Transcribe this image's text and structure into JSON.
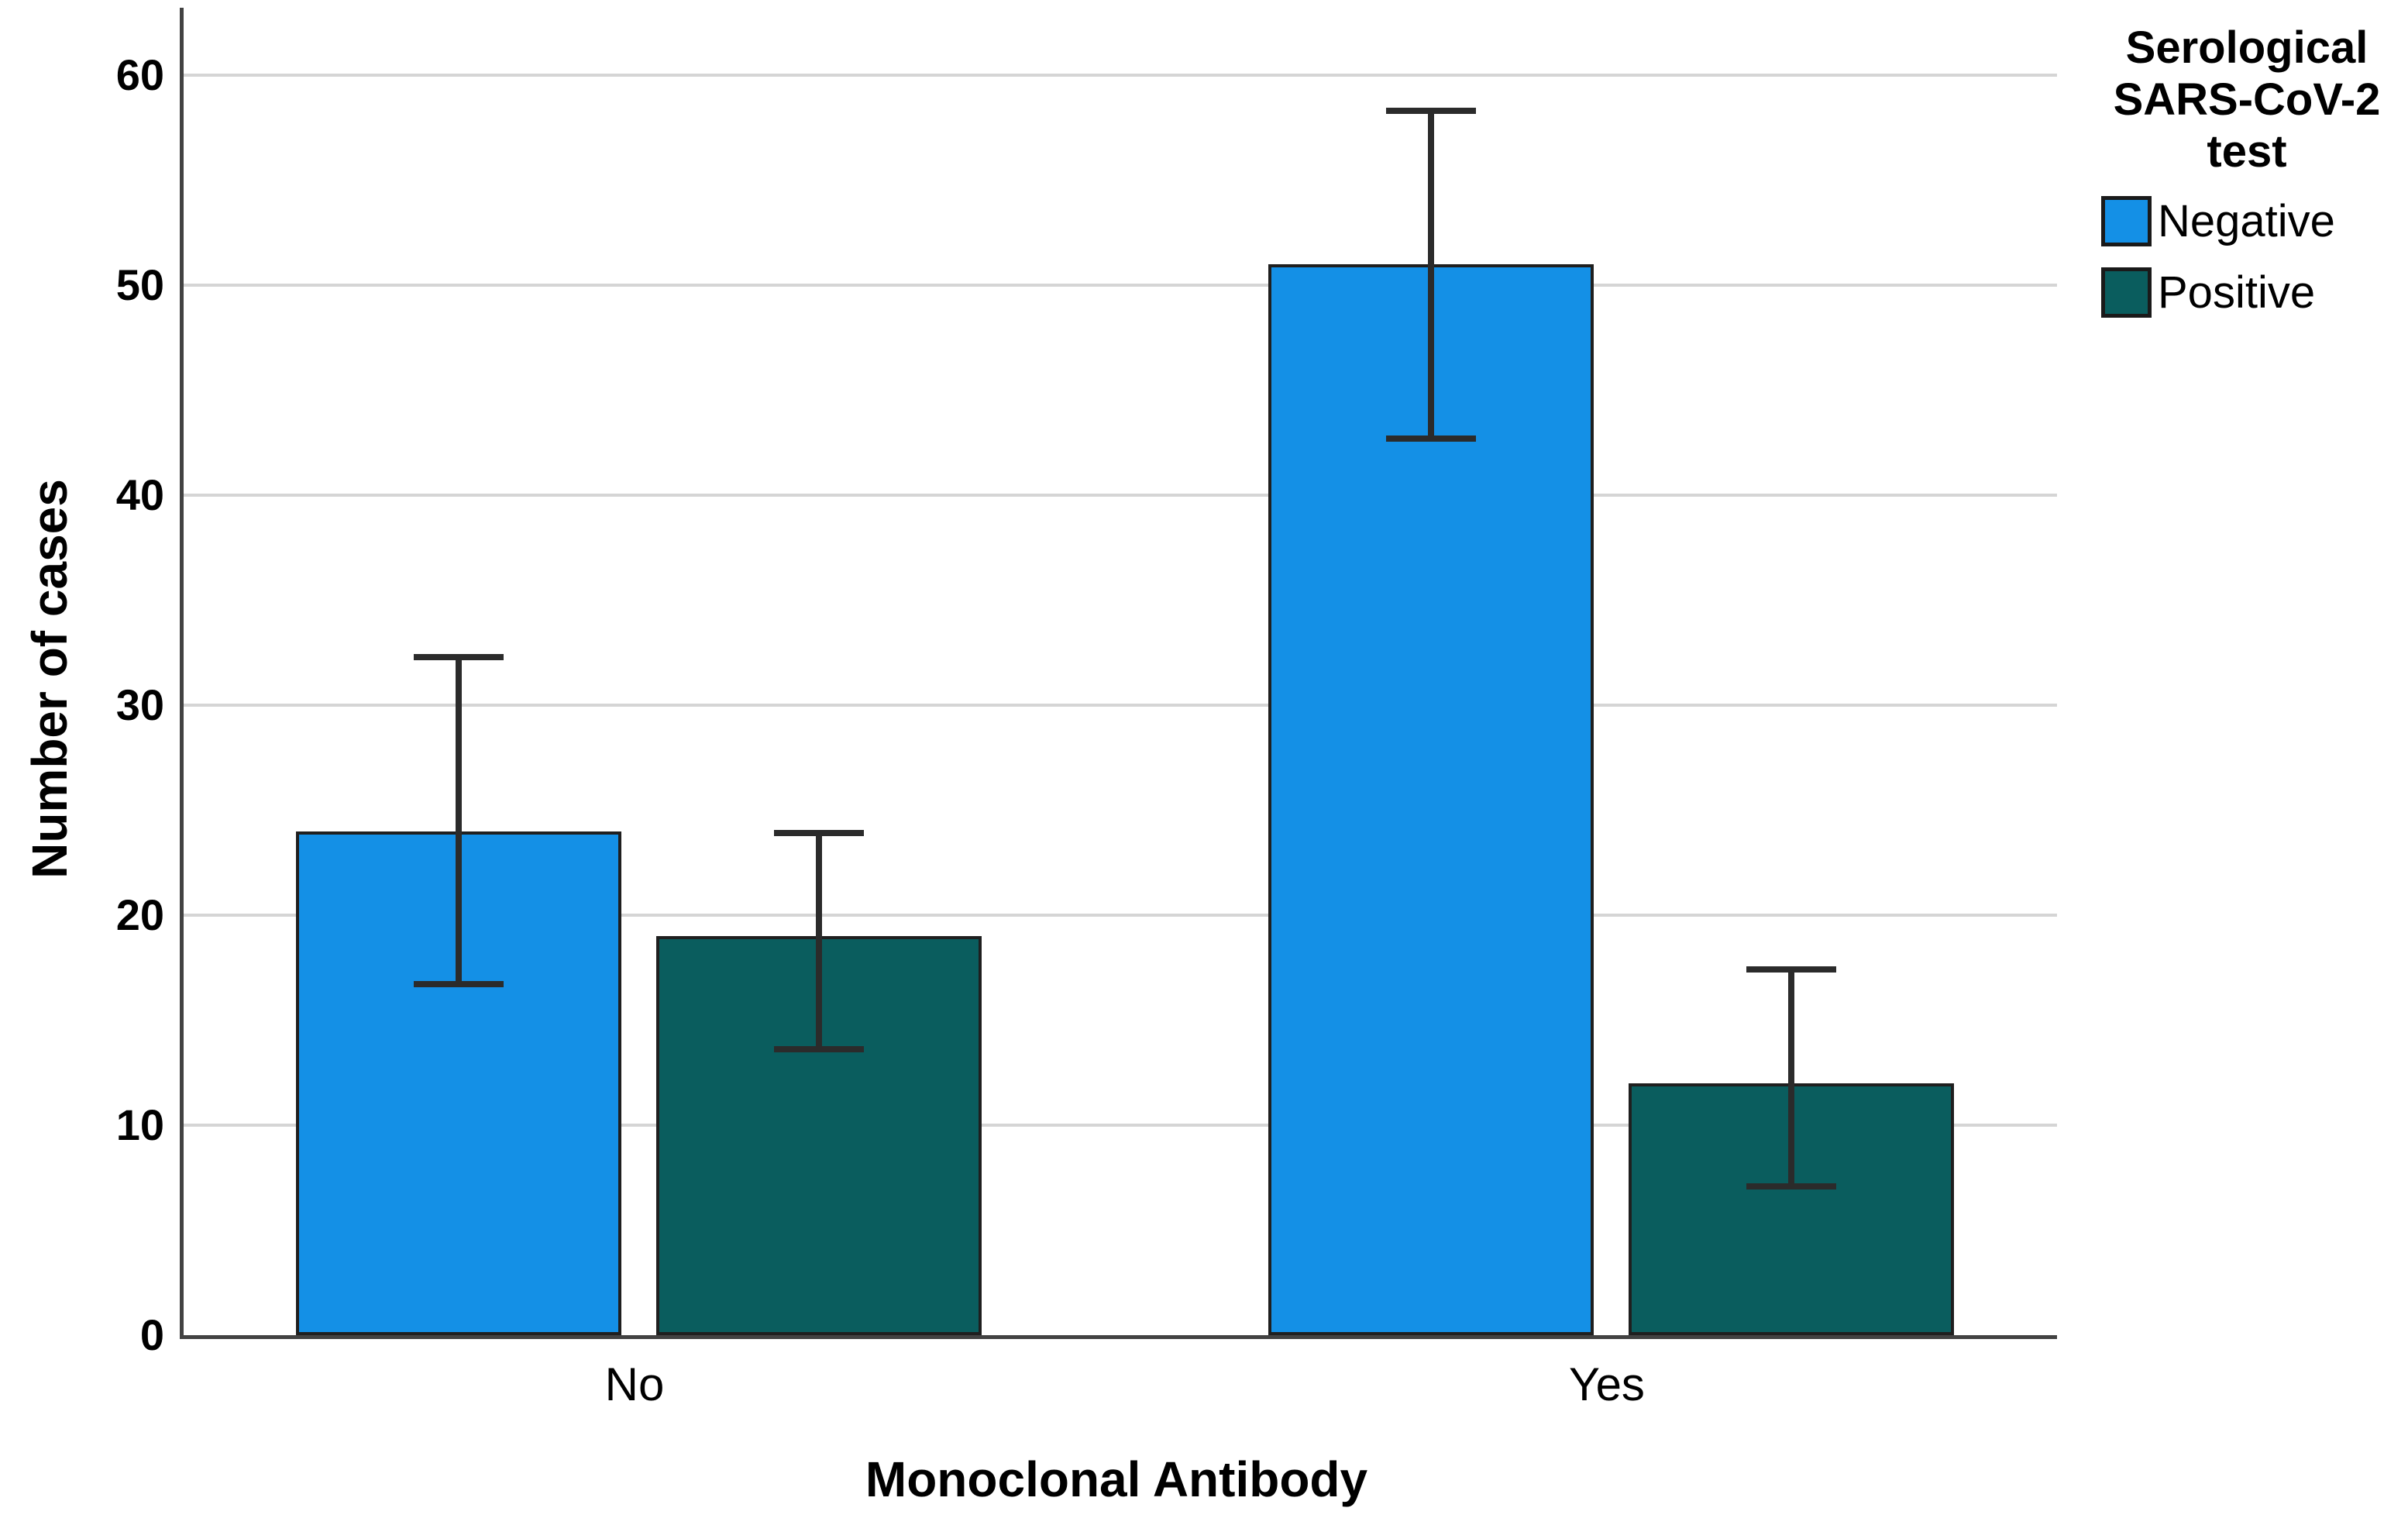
{
  "chart_data": {
    "type": "bar",
    "title": "",
    "xlabel": "Monoclonal Antibody",
    "ylabel": "Number of cases",
    "categories": [
      "No",
      "Yes"
    ],
    "series": [
      {
        "name": "Negative",
        "color": "#1490e6",
        "values": [
          24,
          51
        ],
        "error_low": [
          16.7,
          42.7
        ],
        "error_high": [
          32.3,
          58.3
        ]
      },
      {
        "name": "Positive",
        "color": "#0a5d5e",
        "values": [
          19,
          12
        ],
        "error_low": [
          13.6,
          7.1
        ],
        "error_high": [
          23.9,
          17.4
        ]
      }
    ],
    "ylim": [
      0,
      60
    ],
    "yticks": [
      0,
      10,
      20,
      30,
      40,
      50,
      60
    ],
    "grid": "horizontal-light-gray",
    "legend": {
      "position": "top-right",
      "title_lines": [
        "Serological",
        "SARS-CoV-2",
        "test"
      ],
      "entries": [
        "Negative",
        "Positive"
      ]
    }
  }
}
